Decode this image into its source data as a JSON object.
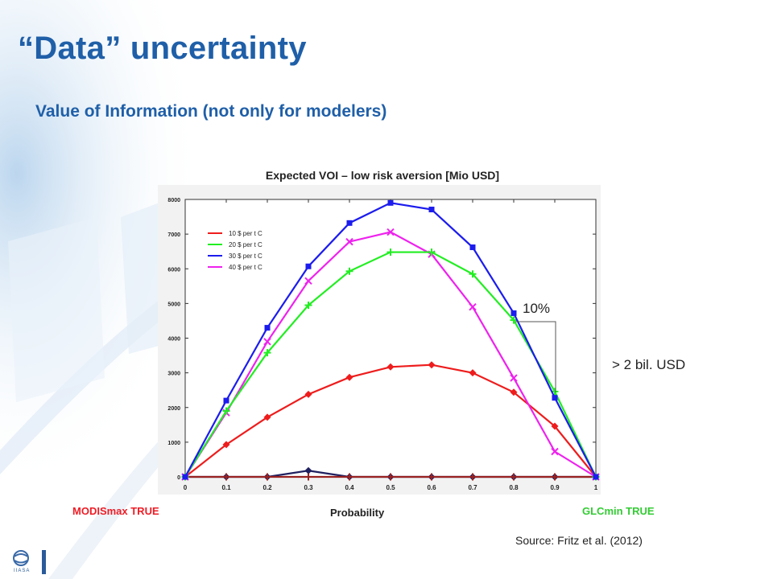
{
  "slide": {
    "title": "“Data” uncertainty",
    "subtitle": "Value of Information (not only for modelers)",
    "annotation_pct": "10%",
    "annotation_value": "> 2 bil. USD",
    "left_label": "MODISmax TRUE",
    "right_label": "GLCmin TRUE",
    "source": "Source: Fritz et al. (2012)",
    "logo_text": "IIASA",
    "colors": {
      "title": "#1f5fa8",
      "left_label": "#ee1c25",
      "right_label": "#33cc33"
    },
    "icons": [
      "iiasa-logo-icon"
    ]
  },
  "chart_data": {
    "type": "line",
    "title": "Expected VOI – low risk aversion [Mio USD]",
    "xlabel": "Probability",
    "ylabel": "",
    "xlim": [
      0,
      1
    ],
    "ylim": [
      0,
      8000
    ],
    "grid": false,
    "legend_position": "top-left",
    "x": [
      0,
      0.1,
      0.2,
      0.3,
      0.4,
      0.5,
      0.6,
      0.7,
      0.8,
      0.9,
      1
    ],
    "x_ticks": [
      "0",
      "0.1",
      "0.2",
      "0.3",
      "0.4",
      "0.5",
      "0.6",
      "0.7",
      "0.8",
      "0.9",
      "1"
    ],
    "y_ticks": [
      "0",
      "1000",
      "2000",
      "3000",
      "4000",
      "5000",
      "6000",
      "7000",
      "8000"
    ],
    "series": [
      {
        "name": "10 $ per t C",
        "color": "#ee1c1c",
        "marker": "diamond",
        "values": [
          0,
          930,
          1720,
          2380,
          2870,
          3170,
          3230,
          3000,
          2440,
          1460,
          0
        ]
      },
      {
        "name": "20 $ per t C",
        "color": "#22ee22",
        "marker": "plus",
        "values": [
          0,
          1900,
          3580,
          4950,
          5930,
          6480,
          6480,
          5850,
          4520,
          2460,
          0
        ]
      },
      {
        "name": "30 $ per t C",
        "color": "#1c1cee",
        "marker": "square",
        "values": [
          0,
          2200,
          4300,
          6070,
          7320,
          7900,
          7710,
          6620,
          4720,
          2280,
          0
        ]
      },
      {
        "name": "40 $ per t C",
        "color": "#ee22ee",
        "marker": "cross",
        "values": [
          0,
          1850,
          3900,
          5650,
          6780,
          7060,
          6420,
          4900,
          2850,
          730,
          0
        ]
      },
      {
        "name": "",
        "color": "#202060",
        "marker": "diamond",
        "legend": false,
        "values": [
          0,
          0,
          0,
          180,
          0,
          0,
          0,
          0,
          0,
          0,
          0
        ]
      },
      {
        "name": "",
        "color": "#992222",
        "marker": "plus",
        "legend": false,
        "values": [
          0,
          0,
          0,
          0,
          0,
          0,
          0,
          0,
          0,
          0,
          0
        ]
      }
    ]
  }
}
